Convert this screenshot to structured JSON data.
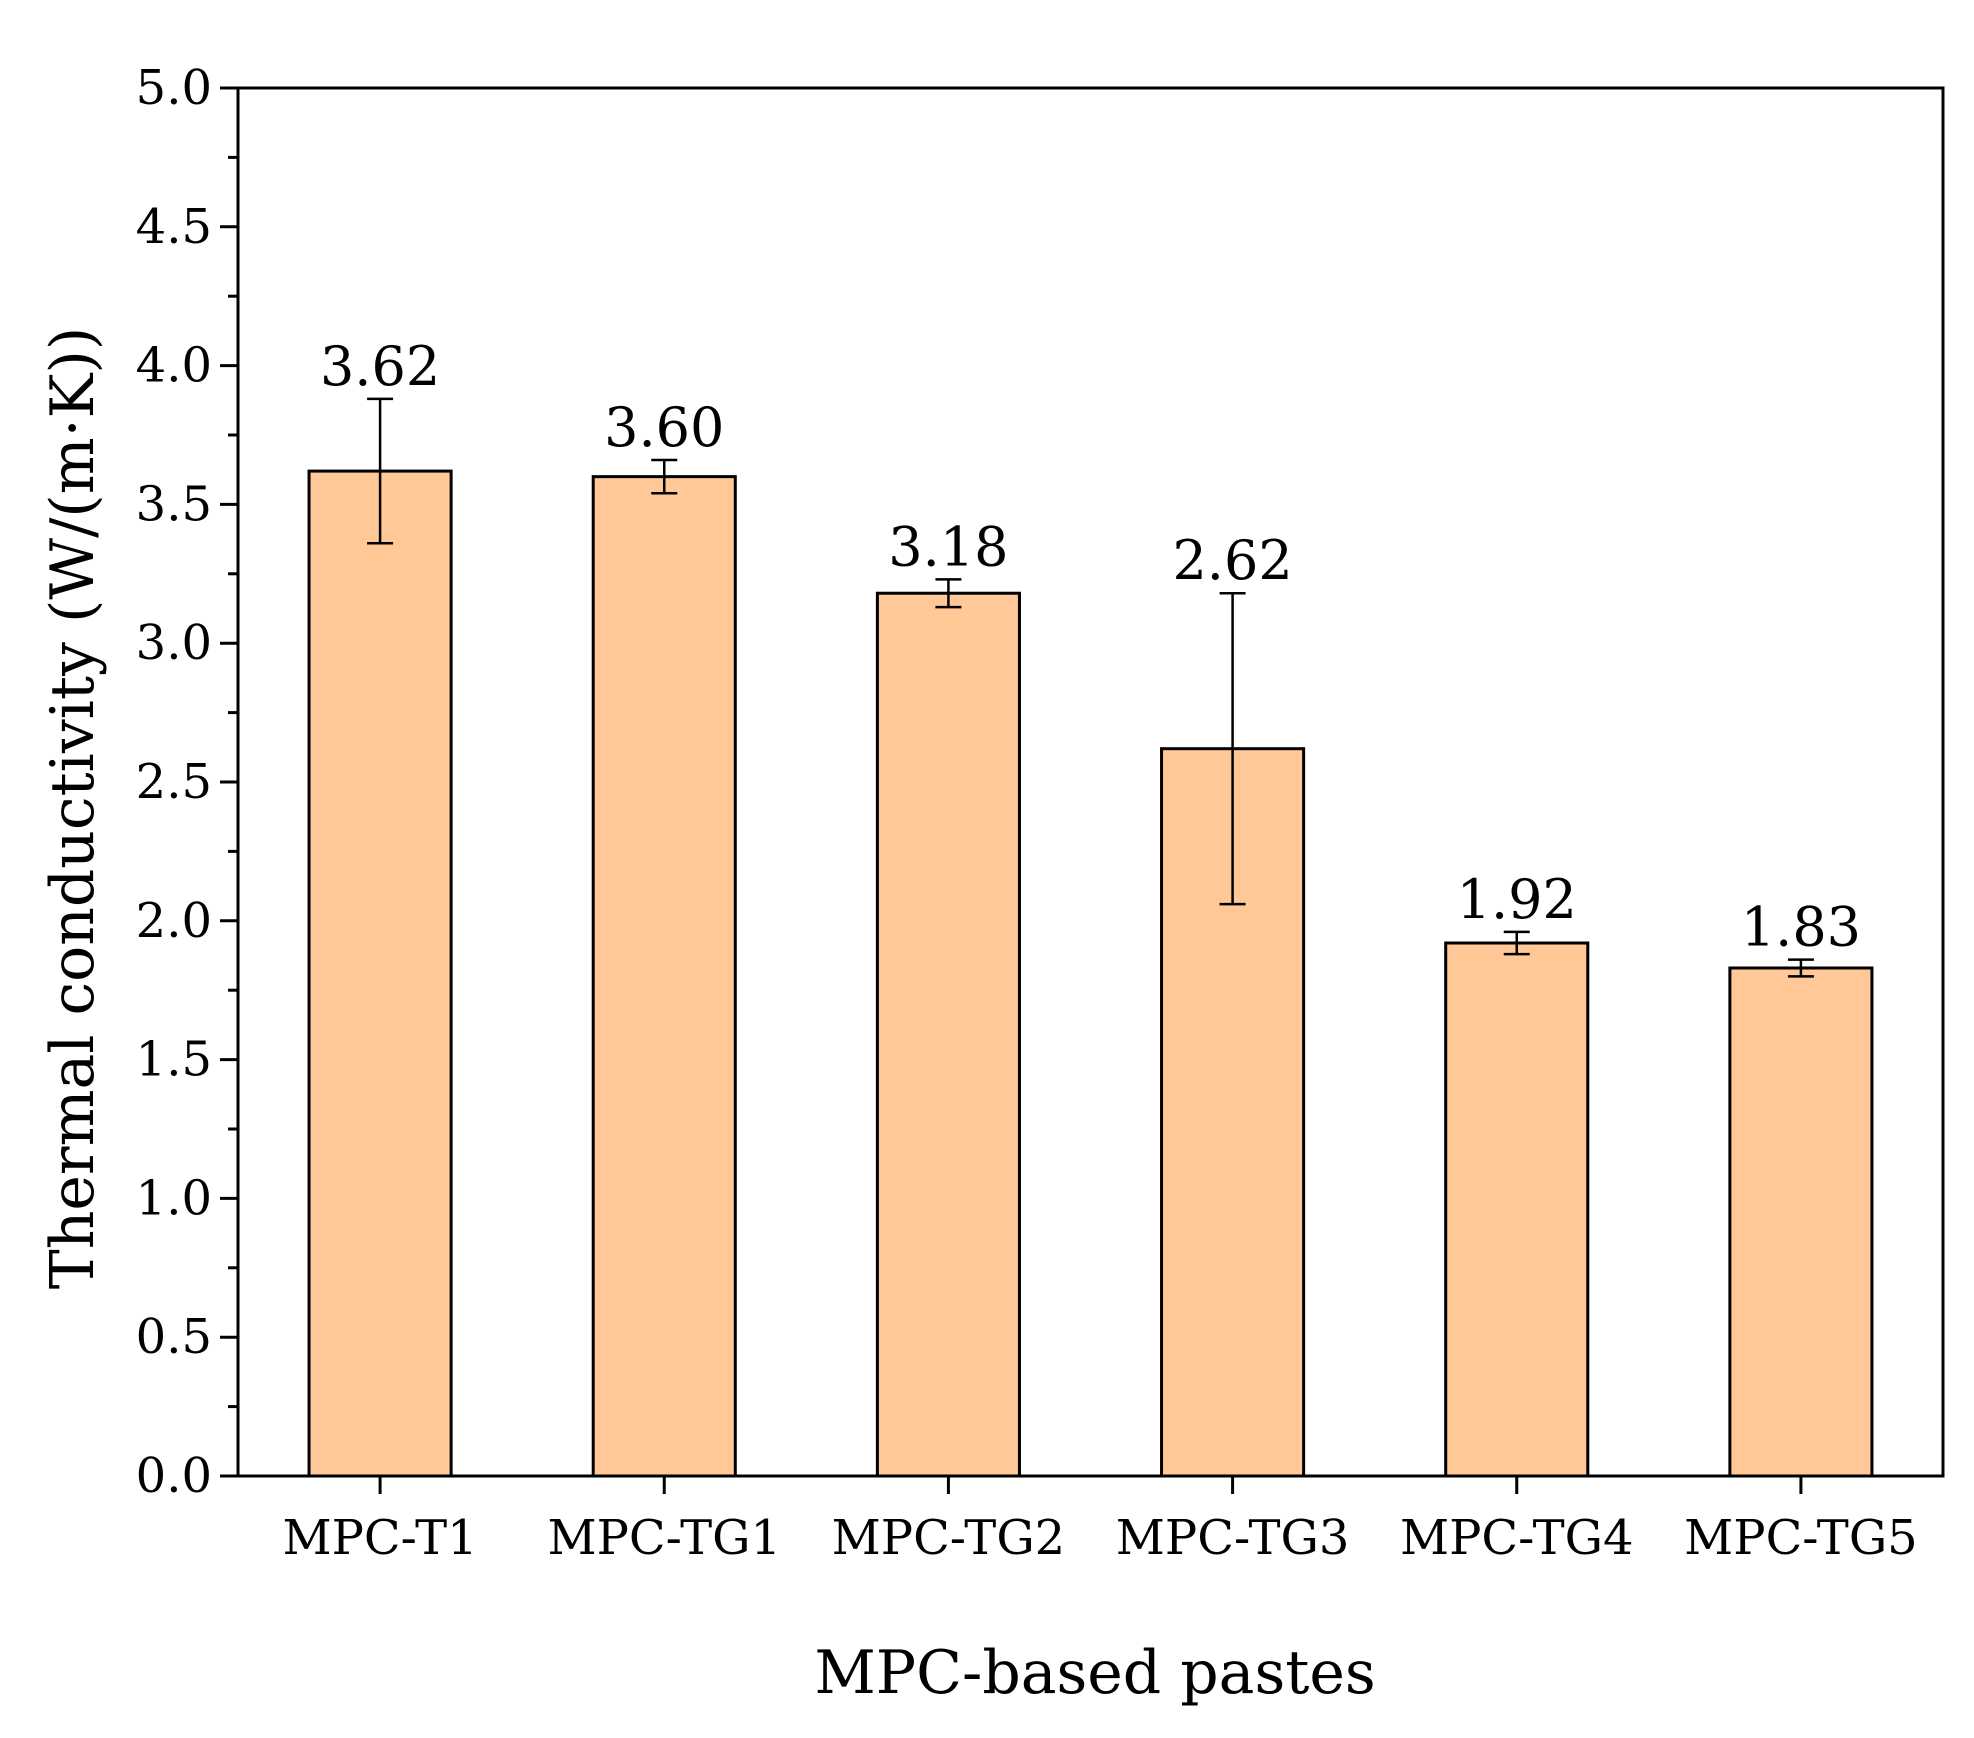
{
  "chart_data": {
    "type": "bar",
    "title": "",
    "xlabel": "MPC-based pastes",
    "ylabel": "Thermal conductivity (W/(m·K))",
    "categories": [
      "MPC-T1",
      "MPC-TG1",
      "MPC-TG2",
      "MPC-TG3",
      "MPC-TG4",
      "MPC-TG5"
    ],
    "values": [
      3.62,
      3.6,
      3.18,
      2.62,
      1.92,
      1.83
    ],
    "value_labels": [
      "3.62",
      "3.60",
      "3.18",
      "2.62",
      "1.92",
      "1.83"
    ],
    "error": [
      0.26,
      0.06,
      0.05,
      0.56,
      0.04,
      0.03
    ],
    "ylim": [
      0,
      5
    ],
    "yticks": [
      "0.0",
      "0.5",
      "1.0",
      "1.5",
      "2.0",
      "2.5",
      "3.0",
      "3.5",
      "4.0",
      "4.5",
      "5.0"
    ],
    "grid": false,
    "bar_color": "#FFC896",
    "edge_color": "#000000"
  }
}
